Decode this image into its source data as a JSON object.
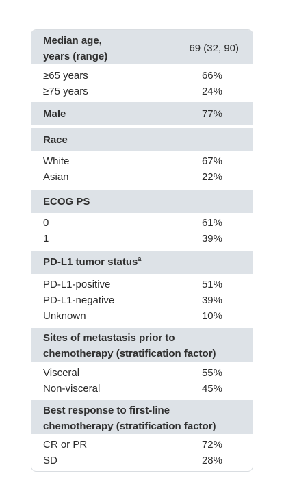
{
  "table": {
    "median_age": {
      "label_line1": "Median age,",
      "label_line2": "years (range)",
      "value": "69 (32, 90)"
    },
    "age_65": {
      "label": "≥65 years",
      "value": "66%"
    },
    "age_75": {
      "label": "≥75 years",
      "value": "24%"
    },
    "male": {
      "label": "Male",
      "value": "77%"
    },
    "race": {
      "header": "Race",
      "white_label": "White",
      "white_value": "67%",
      "asian_label": "Asian",
      "asian_value": "22%"
    },
    "ecog": {
      "header": "ECOG PS",
      "ps0_label": "0",
      "ps0_value": "61%",
      "ps1_label": "1",
      "ps1_value": "39%"
    },
    "pdl1": {
      "header": "PD-L1 tumor status",
      "footnote_mark": "a",
      "positive_label": "PD-L1-positive",
      "positive_value": "51%",
      "negative_label": "PD-L1-negative",
      "negative_value": "39%",
      "unknown_label": "Unknown",
      "unknown_value": "10%"
    },
    "metastasis": {
      "header_line1": "Sites of metastasis prior to",
      "header_line2": "chemotherapy (stratification factor)",
      "visceral_label": "Visceral",
      "visceral_value": "55%",
      "nonvisceral_label": "Non-visceral",
      "nonvisceral_value": "45%"
    },
    "response": {
      "header_line1": "Best response to first-line",
      "header_line2": "chemotherapy (stratification factor)",
      "crpr_label": "CR or PR",
      "crpr_value": "72%",
      "sd_label": "SD",
      "sd_value": "28%"
    }
  },
  "colors": {
    "header_band": "#dde2e7",
    "border": "#d9dde1",
    "text": "#2b2b2b"
  }
}
